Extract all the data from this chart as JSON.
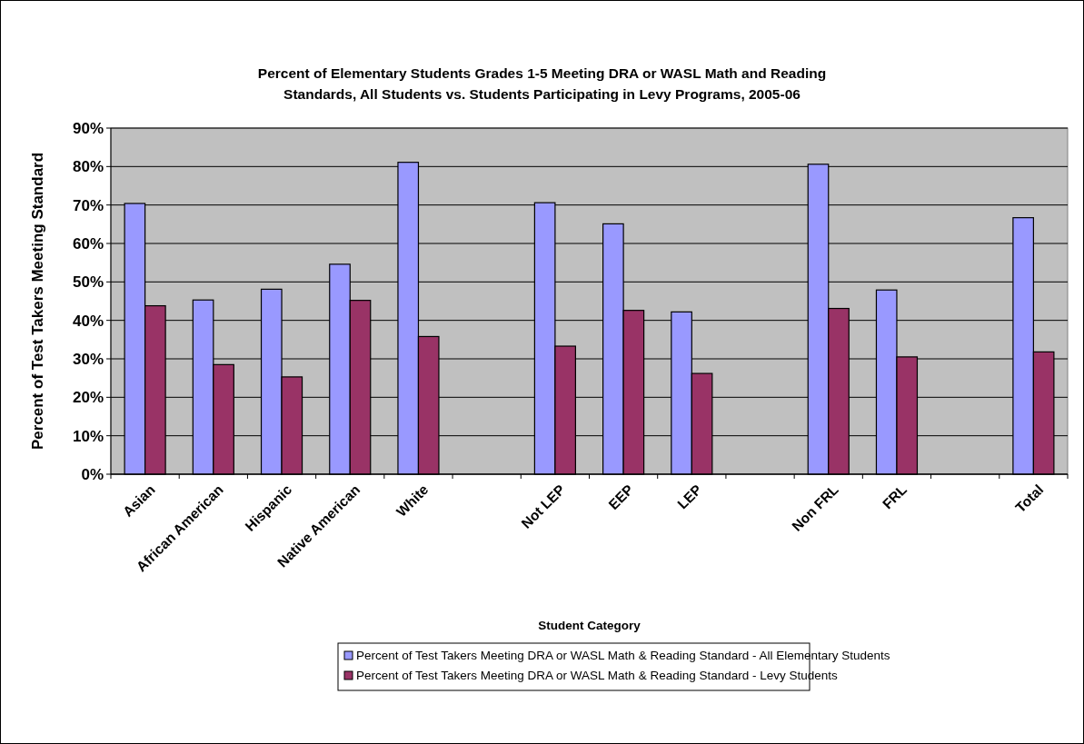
{
  "chart_data": {
    "type": "bar",
    "title": "Percent of Elementary Students Grades 1-5 Meeting DRA or WASL Math and Reading Standards, All Students vs. Students Participating in Levy Programs, 2005-06",
    "xlabel": "Student Category",
    "ylabel": "Percent of Test Takers Meeting Standard",
    "categories": [
      "Asian",
      "African American",
      "Hispanic",
      "Native American",
      "White",
      null,
      "Not LEP",
      "EEP",
      "LEP",
      null,
      "Non FRL",
      "FRL",
      null,
      "Total"
    ],
    "series": [
      {
        "name": "Percent of Test Takers Meeting DRA or WASL Math & Reading Standard - All Elementary Students",
        "color": "#9999ff",
        "values": [
          70.4,
          45.3,
          48.1,
          54.6,
          81.1,
          null,
          70.6,
          65.1,
          42.2,
          null,
          80.6,
          47.9,
          null,
          66.7
        ]
      },
      {
        "name": "Percent of Test Takers Meeting DRA or WASL Math & Reading Standard - Levy Students",
        "color": "#993366",
        "values": [
          43.8,
          28.5,
          25.3,
          45.2,
          35.8,
          null,
          33.3,
          42.6,
          26.2,
          null,
          43.1,
          30.5,
          null,
          31.8
        ]
      }
    ],
    "ylim": [
      0,
      90
    ],
    "yticks": [
      {
        "value": 0,
        "label": "0%"
      },
      {
        "value": 10,
        "label": "10%"
      },
      {
        "value": 20,
        "label": "20%"
      },
      {
        "value": 30,
        "label": "30%"
      },
      {
        "value": 40,
        "label": "40%"
      },
      {
        "value": 50,
        "label": "50%"
      },
      {
        "value": 60,
        "label": "60%"
      },
      {
        "value": 70,
        "label": "70%"
      },
      {
        "value": 80,
        "label": "80%"
      },
      {
        "value": 90,
        "label": "90%"
      }
    ],
    "grid": "y",
    "legend": "bottom"
  }
}
